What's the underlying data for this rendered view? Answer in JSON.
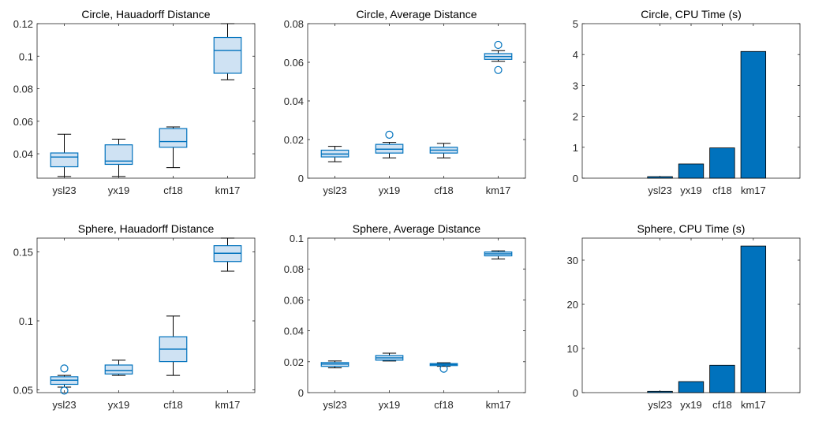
{
  "style": {
    "box_fill": "#cfe2f3",
    "box_stroke": "#0072bd",
    "bar_fill": "#0072bd",
    "axis_color": "#262626",
    "whisker_color": "#000000"
  },
  "chart_data": [
    {
      "type": "box",
      "title": "Circle, Hauadorff Distance",
      "categories": [
        "ysl23",
        "yx19",
        "cf18",
        "km17"
      ],
      "ylim": [
        0.025,
        0.12
      ],
      "yticks": [
        0.04,
        0.06,
        0.08,
        0.1,
        0.12
      ],
      "ytick_labels": [
        "0.04",
        "0.06",
        "0.08",
        "0.1",
        "0.12"
      ],
      "boxes": [
        {
          "q1": 0.032,
          "median": 0.038,
          "q3": 0.0405,
          "whisker_low": 0.026,
          "whisker_high": 0.052,
          "outliers": []
        },
        {
          "q1": 0.0335,
          "median": 0.0355,
          "q3": 0.0455,
          "whisker_low": 0.026,
          "whisker_high": 0.049,
          "outliers": []
        },
        {
          "q1": 0.044,
          "median": 0.0475,
          "q3": 0.0555,
          "whisker_low": 0.0315,
          "whisker_high": 0.0565,
          "outliers": []
        },
        {
          "q1": 0.0895,
          "median": 0.1035,
          "q3": 0.1115,
          "whisker_low": 0.0855,
          "whisker_high": 0.12,
          "outliers": []
        }
      ]
    },
    {
      "type": "box",
      "title": "Circle, Average Distance",
      "categories": [
        "ysl23",
        "yx19",
        "cf18",
        "km17"
      ],
      "ylim": [
        0,
        0.08
      ],
      "yticks": [
        0,
        0.02,
        0.04,
        0.06,
        0.08
      ],
      "ytick_labels": [
        "0",
        "0.02",
        "0.04",
        "0.06",
        "0.08"
      ],
      "boxes": [
        {
          "q1": 0.011,
          "median": 0.0125,
          "q3": 0.0145,
          "whisker_low": 0.0085,
          "whisker_high": 0.0165,
          "outliers": []
        },
        {
          "q1": 0.013,
          "median": 0.015,
          "q3": 0.0175,
          "whisker_low": 0.0105,
          "whisker_high": 0.0185,
          "outliers": [
            0.0225
          ]
        },
        {
          "q1": 0.013,
          "median": 0.0145,
          "q3": 0.016,
          "whisker_low": 0.0105,
          "whisker_high": 0.018,
          "outliers": []
        },
        {
          "q1": 0.0615,
          "median": 0.063,
          "q3": 0.0645,
          "whisker_low": 0.0605,
          "whisker_high": 0.066,
          "outliers": [
            0.069,
            0.056
          ]
        }
      ]
    },
    {
      "type": "bar",
      "title": "Circle, CPU Time (s)",
      "categories": [
        "ysl23",
        "yx19",
        "cf18",
        "km17"
      ],
      "values": [
        0.05,
        0.46,
        0.98,
        4.1
      ],
      "ylim": [
        0,
        5
      ],
      "yticks": [
        0,
        1,
        2,
        3,
        4,
        5
      ],
      "ytick_labels": [
        "0",
        "1",
        "2",
        "3",
        "4",
        "5"
      ]
    },
    {
      "type": "box",
      "title": "Sphere, Hauadorff Distance",
      "categories": [
        "ysl23",
        "yx19",
        "cf18",
        "km17"
      ],
      "ylim": [
        0.048,
        0.16
      ],
      "yticks": [
        0.05,
        0.1,
        0.15
      ],
      "ytick_labels": [
        "0.05",
        "0.1",
        "0.15"
      ],
      "boxes": [
        {
          "q1": 0.054,
          "median": 0.057,
          "q3": 0.0595,
          "whisker_low": 0.052,
          "whisker_high": 0.0605,
          "outliers": [
            0.0655,
            0.0495
          ]
        },
        {
          "q1": 0.0615,
          "median": 0.064,
          "q3": 0.068,
          "whisker_low": 0.0605,
          "whisker_high": 0.0715,
          "outliers": []
        },
        {
          "q1": 0.0705,
          "median": 0.0795,
          "q3": 0.0885,
          "whisker_low": 0.0605,
          "whisker_high": 0.1035,
          "outliers": []
        },
        {
          "q1": 0.143,
          "median": 0.149,
          "q3": 0.1545,
          "whisker_low": 0.136,
          "whisker_high": 0.16,
          "outliers": []
        }
      ]
    },
    {
      "type": "box",
      "title": "Sphere, Average Distance",
      "categories": [
        "ysl23",
        "yx19",
        "cf18",
        "km17"
      ],
      "ylim": [
        0,
        0.1
      ],
      "yticks": [
        0,
        0.02,
        0.04,
        0.06,
        0.08,
        0.1
      ],
      "ytick_labels": [
        "0",
        "0.02",
        "0.04",
        "0.06",
        "0.08",
        "0.1"
      ],
      "boxes": [
        {
          "q1": 0.017,
          "median": 0.0185,
          "q3": 0.0195,
          "whisker_low": 0.016,
          "whisker_high": 0.0205,
          "outliers": []
        },
        {
          "q1": 0.021,
          "median": 0.0225,
          "q3": 0.024,
          "whisker_low": 0.0205,
          "whisker_high": 0.0255,
          "outliers": []
        },
        {
          "q1": 0.0175,
          "median": 0.0182,
          "q3": 0.0188,
          "whisker_low": 0.017,
          "whisker_high": 0.0193,
          "outliers": [
            0.0155
          ]
        },
        {
          "q1": 0.0885,
          "median": 0.0898,
          "q3": 0.091,
          "whisker_low": 0.0865,
          "whisker_high": 0.0918,
          "outliers": []
        }
      ]
    },
    {
      "type": "bar",
      "title": "Sphere, CPU Time (s)",
      "categories": [
        "ysl23",
        "yx19",
        "cf18",
        "km17"
      ],
      "values": [
        0.3,
        2.5,
        6.2,
        33.2
      ],
      "ylim": [
        0,
        35
      ],
      "yticks": [
        0,
        10,
        20,
        30
      ],
      "ytick_labels": [
        "0",
        "10",
        "20",
        "30"
      ]
    }
  ]
}
